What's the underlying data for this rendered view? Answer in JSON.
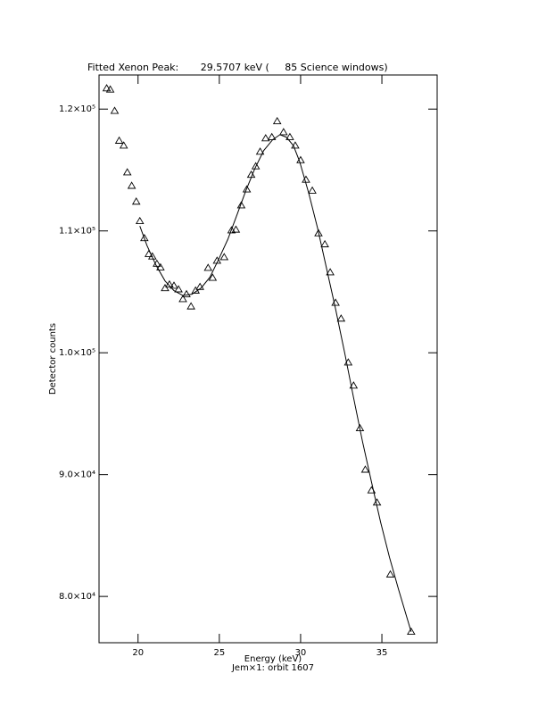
{
  "chart_data": {
    "type": "scatter",
    "title": "Fitted Xenon Peak:       29.5707 keV (     85 Science windows)",
    "xlabel": "Energy (keV)",
    "subtitle": "Jem×1: orbit 1607",
    "ylabel": "Detector counts",
    "xlim": [
      17.6,
      38.4
    ],
    "ylim": [
      76200,
      122800
    ],
    "xticks": [
      20,
      25,
      30,
      35
    ],
    "yticks": [
      {
        "value": 80000,
        "label": "8.0×10⁴"
      },
      {
        "value": 90000,
        "label": "9.0×10⁴"
      },
      {
        "value": 100000,
        "label": "1.0×10⁵"
      },
      {
        "value": 110000,
        "label": "1.1×10⁵"
      },
      {
        "value": 120000,
        "label": "1.2×10⁵"
      }
    ],
    "grid": false,
    "series": [
      {
        "mode": "markers",
        "marker": "triangle",
        "color": "#000000",
        "x": [
          18.07,
          18.29,
          18.56,
          18.84,
          19.12,
          19.34,
          19.61,
          19.89,
          20.11,
          20.39,
          20.66,
          20.88,
          21.16,
          21.38,
          21.66,
          21.93,
          22.21,
          22.49,
          22.76,
          22.98,
          23.26,
          23.54,
          23.81,
          24.31,
          24.59,
          24.86,
          25.3,
          25.75,
          26.02,
          26.35,
          26.69,
          26.96,
          27.24,
          27.51,
          27.85,
          28.23,
          28.56,
          28.95,
          29.34,
          29.67,
          30.0,
          30.33,
          30.72,
          31.1,
          31.49,
          31.82,
          32.15,
          32.49,
          32.93,
          33.26,
          33.65,
          33.98,
          34.36,
          34.7,
          35.52,
          36.8
        ],
        "values": [
          121700,
          121600,
          119850,
          117400,
          117000,
          114800,
          113700,
          112400,
          110800,
          109400,
          108100,
          107900,
          107300,
          107000,
          105300,
          105600,
          105500,
          105200,
          104400,
          104800,
          103800,
          105100,
          105400,
          106960,
          106150,
          107550,
          107840,
          110040,
          110100,
          112090,
          113400,
          114600,
          115300,
          116500,
          117600,
          117700,
          119000,
          118100,
          117700,
          117000,
          115800,
          114200,
          113300,
          109800,
          108900,
          106600,
          104100,
          102800,
          99200,
          97300,
          93800,
          90400,
          88700,
          87700,
          81800,
          77100
        ]
      },
      {
        "mode": "line",
        "color": "#000000",
        "x": [
          20.11,
          20.55,
          21.1,
          21.66,
          22.21,
          22.76,
          23.31,
          23.87,
          24.42,
          24.97,
          25.52,
          26.08,
          26.63,
          27.18,
          27.73,
          28.29,
          28.73,
          29.12,
          29.56,
          29.94,
          30.5,
          31.05,
          31.6,
          32.15,
          32.71,
          33.26,
          33.81,
          34.36,
          34.92,
          35.47,
          36.02,
          36.8
        ],
        "values": [
          110400,
          108800,
          107200,
          105900,
          105100,
          104700,
          104800,
          105300,
          106200,
          107700,
          109300,
          111300,
          113300,
          115100,
          116600,
          117500,
          117900,
          117700,
          117000,
          115700,
          113100,
          110200,
          106900,
          103600,
          100000,
          96300,
          92700,
          89400,
          86100,
          83200,
          80600,
          77100
        ]
      }
    ]
  }
}
